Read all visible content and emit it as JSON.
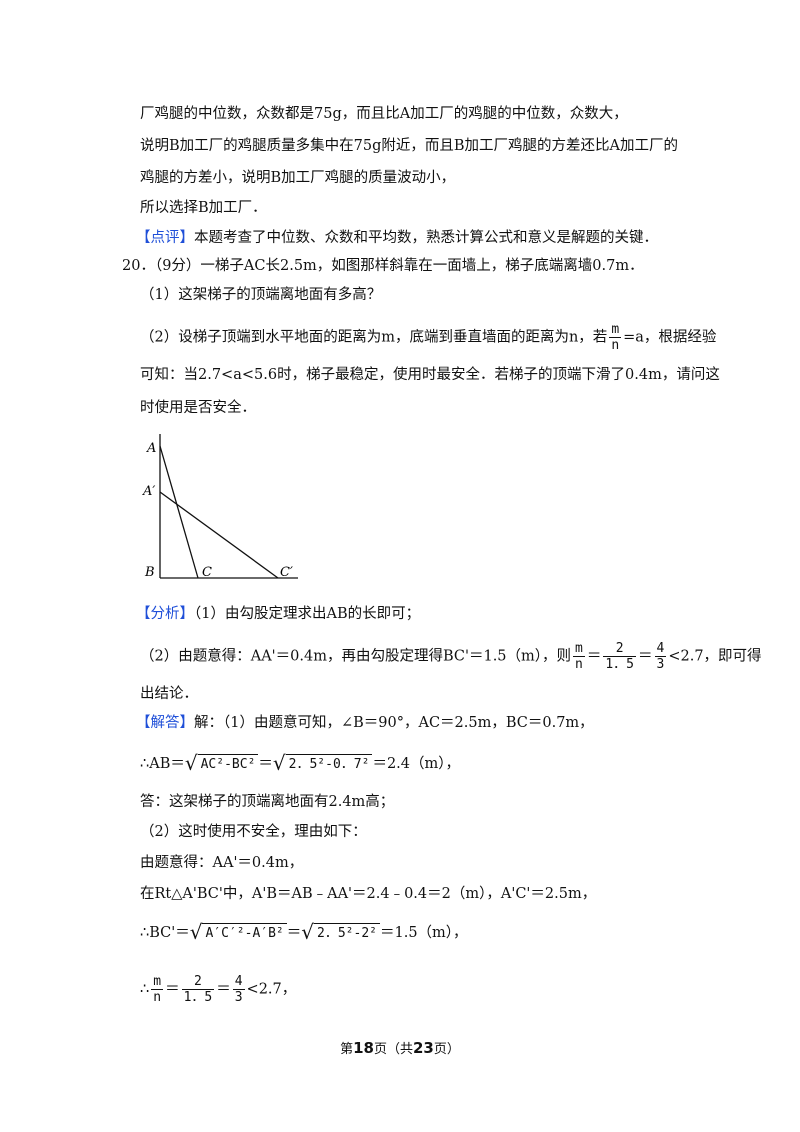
{
  "lines": {
    "l1": "厂鸡腿的中位数，众数都是75g，而且比A加工厂的鸡腿的中位数，众数大，",
    "l2": "说明B加工厂的鸡腿质量多集中在75g附近，而且B加工厂鸡腿的方差还比A加工厂的",
    "l3": "鸡腿的方差小，说明B加工厂鸡腿的质量波动小，",
    "l4": "所以选择B加工厂．",
    "pingyu_tag": "【点评】",
    "pingyu_text": "本题考查了中位数、众数和平均数，熟悉计算公式和意义是解题的关键．",
    "q20": "20．（9分）一梯子AC长2.5m，如图那样斜靠在一面墙上，梯子底端离墙0.7m．",
    "q20_1": "（1）这架梯子的顶端离地面有多高？",
    "q20_2a": "（2）设梯子顶端到水平地面的距离为m，底端到垂直墙面的距离为n，若",
    "q20_2a_frac_num": "m",
    "q20_2a_frac_den": "n",
    "q20_2a_tail": "=a，根据经验",
    "q20_2b": "可知：当2.7<a<5.6时，梯子最稳定，使用时最安全．若梯子的顶端下滑了0.4m，请问这",
    "q20_2c": "时使用是否安全．",
    "fenxi_tag": "【分析】",
    "fenxi_1": "（1）由勾股定理求出AB的长即可；",
    "fenxi_2a": "（2）由题意得：AA'＝0.4m，再由勾股定理得BC'＝1.5（m），则",
    "fenxi_2_tail": "<2.7，即可得",
    "fenxi_2b": "出结论．",
    "jieda_tag": "【解答】",
    "jieda_1": "解：（1）由题意可知，∠B＝90°，AC＝2.5m，BC＝0.7m，",
    "ab_prefix": "∴AB＝",
    "ab_rad1": "AC²-BC²",
    "ab_rad2": "2．5²-0．7²",
    "ab_tail": "＝2.4（m），",
    "ans1": "答：这架梯子的顶端离地面有2.4m高；",
    "p2": "（2）这时使用不安全，理由如下：",
    "p3": "由题意得：AA'＝0.4m，",
    "p4": "在Rt△A'BC'中，A'B＝AB﹣AA'＝2.4﹣0.4＝2（m），A'C'＝2.5m，",
    "bc_prefix": "∴BC'＝",
    "bc_rad1": "A′C′²-A′B²",
    "bc_rad2": "2．5²-2²",
    "bc_tail": "＝1.5（m），",
    "final_prefix": "∴",
    "final_tail": "<2.7，",
    "frac_m": "m",
    "frac_n": "n",
    "frac_2": "2",
    "frac_15": "1．5",
    "frac_4": "4",
    "frac_3": "3",
    "eq": "＝"
  },
  "figure": {
    "label_A": "A",
    "label_A2": "A′",
    "label_B": "B",
    "label_C": "C",
    "label_C2": "C′"
  },
  "footer": {
    "prefix": "第",
    "page": "18",
    "mid": "页（共",
    "total": "23",
    "suffix": "页）"
  },
  "colors": {
    "tag": "#1f4fd8"
  }
}
